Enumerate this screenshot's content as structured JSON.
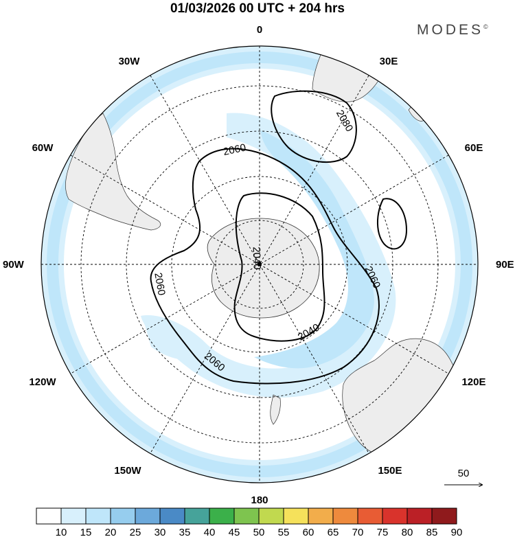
{
  "title": "01/03/2026  00 UTC  + 204 hrs",
  "brand": "MODES",
  "brand_mark": "©",
  "longitude_labels": [
    "0",
    "30E",
    "60E",
    "90E",
    "120E",
    "150E",
    "180",
    "150W",
    "120W",
    "90W",
    "60W",
    "30W"
  ],
  "contour_labels": [
    "2080",
    "2060",
    "2060",
    "2060",
    "2060",
    "2040",
    "2040"
  ],
  "reference_vector": {
    "label": "50"
  },
  "colorbar": {
    "ticks": [
      "10",
      "15",
      "20",
      "25",
      "30",
      "35",
      "40",
      "45",
      "50",
      "55",
      "60",
      "65",
      "70",
      "75",
      "80",
      "85",
      "90"
    ],
    "colors": [
      "#ffffff",
      "#d8f0fc",
      "#bfe6fa",
      "#96cdee",
      "#6ca9db",
      "#4a8ac6",
      "#46a39a",
      "#3bb04a",
      "#7ec44f",
      "#c1d94f",
      "#f5e15b",
      "#f2ad4b",
      "#ee8a3d",
      "#e85c34",
      "#d9332c",
      "#bb2026",
      "#8f1a1c"
    ]
  },
  "colors": {
    "land": "#ededed",
    "ocean": "#ffffff",
    "wind_light": "#d8f0fc",
    "wind_medium": "#bfe6fa",
    "wind_strong": "#96cdee"
  }
}
